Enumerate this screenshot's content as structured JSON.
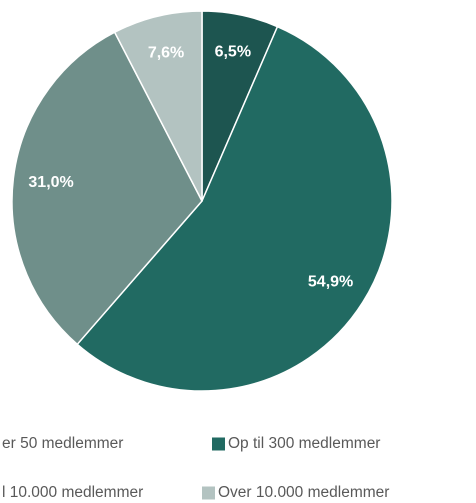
{
  "chart_data": {
    "type": "pie",
    "categories": [
      "er 50 medlemmer",
      "Op til 300 medlemmer",
      "l 10.000 medlemmer",
      "Over 10.000 medlemmer"
    ],
    "values": [
      6.5,
      54.9,
      31.0,
      7.6
    ],
    "value_labels": [
      "6,5%",
      "54,9%",
      "31,0%",
      "7,6%"
    ],
    "colors": [
      "#1d5550",
      "#216a62",
      "#6f8f8a",
      "#b3c3c1"
    ],
    "legend": "bottom"
  }
}
